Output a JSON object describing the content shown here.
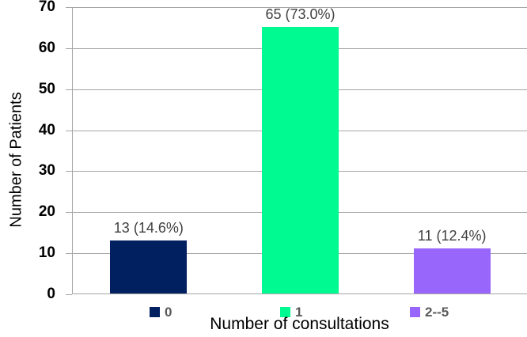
{
  "chart_data": {
    "type": "bar",
    "title": "",
    "categories": [
      "0",
      "1",
      "2--5"
    ],
    "values": [
      13,
      65,
      11
    ],
    "data_labels": [
      "13 (14.6%)",
      "65 (73.0%)",
      "11 (12.4%)"
    ],
    "bar_colors": [
      "#002060",
      "#00FA92",
      "#9966FC"
    ],
    "xlabel": "Number of consultations",
    "ylabel": "Number of Patients",
    "ylim": [
      0,
      70
    ],
    "yticks": [
      0,
      10,
      20,
      30,
      40,
      50,
      60,
      70
    ],
    "grid": true,
    "legend_position": "bottom",
    "legend": [
      {
        "label": "0",
        "color": "#002060"
      },
      {
        "label": "1",
        "color": "#00FA92"
      },
      {
        "label": "2--5",
        "color": "#9966FC"
      }
    ]
  },
  "colors": {
    "background": "#ffffff",
    "grid": "#a6a6a6",
    "axis": "#a6a6a6",
    "tick_label": "#000000",
    "data_label": "#404040",
    "legend_label": "#595959",
    "axis_title": "#000000"
  }
}
